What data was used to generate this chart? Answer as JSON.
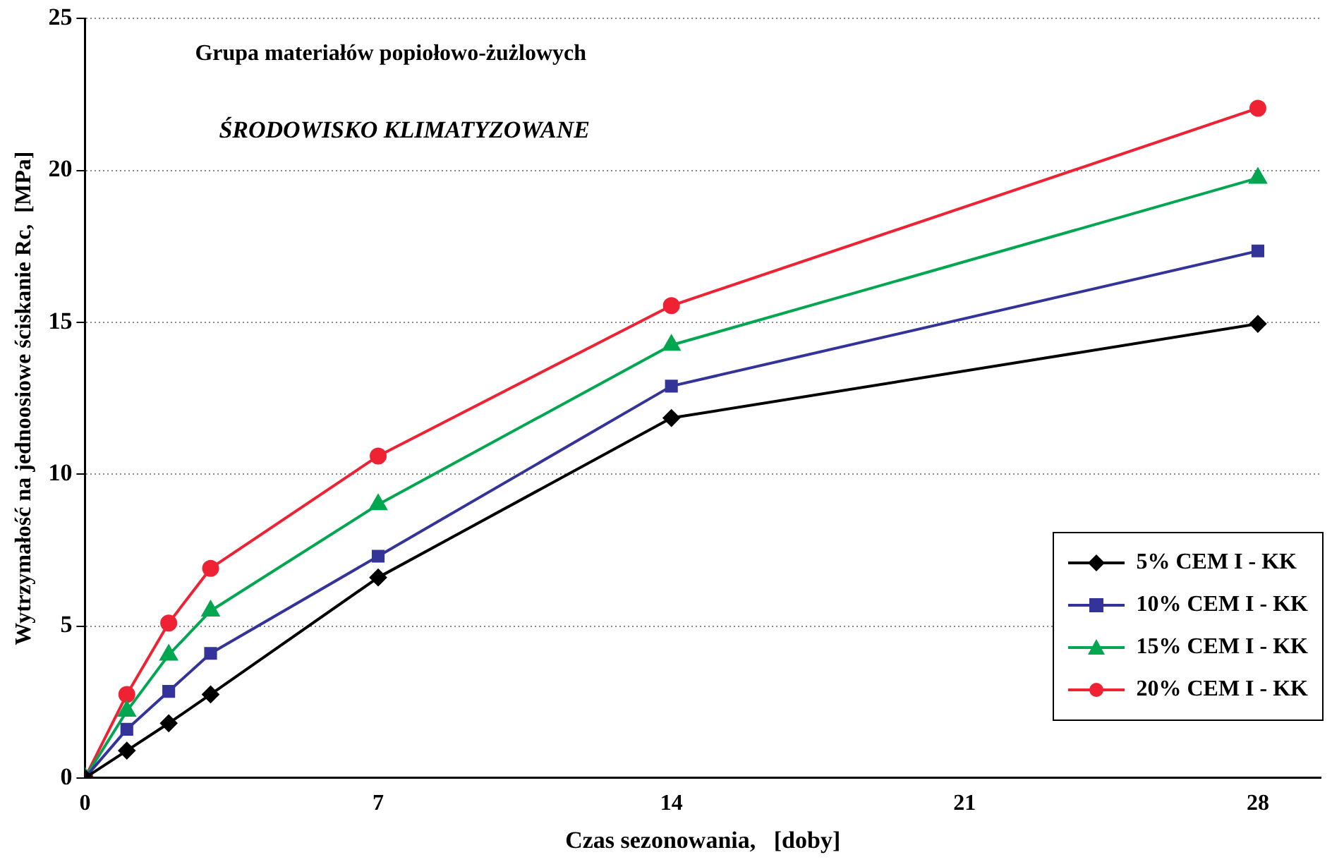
{
  "chart_data": {
    "type": "line",
    "xlabel": "Czas sezonowania,   [doby]",
    "ylabel": "Wytrzymałość na jednoosiowe ściskanie Rc,  [MPa]",
    "annotations": [
      "Grupa materiałów popiołowo-żużlowych",
      "ŚRODOWISKO KLIMATYZOWANE"
    ],
    "x": [
      0,
      1,
      2,
      3,
      7,
      14,
      28
    ],
    "series": [
      {
        "name": "5% CEM I - KK",
        "color": "#000000",
        "marker": "diamond",
        "values": [
          0,
          0.9,
          1.8,
          2.75,
          6.6,
          11.85,
          14.95
        ]
      },
      {
        "name": "10% CEM I - KK",
        "color": "#333399",
        "marker": "square",
        "values": [
          0,
          1.6,
          2.85,
          4.1,
          7.3,
          12.9,
          17.35
        ]
      },
      {
        "name": "15% CEM I - KK",
        "color": "#00a650",
        "marker": "triangle",
        "values": [
          0,
          2.2,
          4.05,
          5.5,
          9.0,
          14.25,
          19.75
        ]
      },
      {
        "name": "20% CEM I - KK",
        "color": "#ee2233",
        "marker": "circle",
        "values": [
          0,
          2.75,
          5.1,
          6.9,
          10.6,
          15.55,
          22.05
        ]
      }
    ],
    "xlim": [
      0,
      29.5
    ],
    "xticks": [
      0,
      7,
      14,
      21,
      28
    ],
    "ylim": [
      0,
      25
    ],
    "yticks": [
      0,
      5,
      10,
      15,
      20,
      25
    ],
    "grid": "y",
    "legend": "bottom right",
    "line_style": "solid"
  }
}
